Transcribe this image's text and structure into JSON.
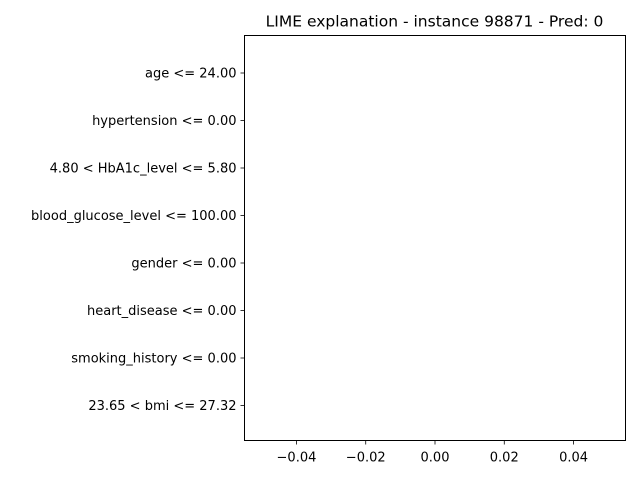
{
  "chart_data": {
    "type": "bar",
    "orientation": "horizontal",
    "title": "LIME explanation - instance 98871 - Pred: 0",
    "xlabel": "",
    "ylabel": "",
    "categories": [
      "age <= 24.00",
      "hypertension <= 0.00",
      "4.80 < HbA1c_level <= 5.80",
      "blood_glucose_level <= 100.00",
      "gender <= 0.00",
      "heart_disease <= 0.00",
      "smoking_history <= 0.00",
      "23.65 < bmi <= 27.32"
    ],
    "values": [
      0,
      0,
      0,
      0,
      0,
      0,
      0,
      0
    ],
    "xlim": [
      -0.055,
      0.055
    ],
    "xticks": [
      -0.04,
      -0.02,
      0.0,
      0.02,
      0.04
    ],
    "xtick_labels": [
      "−0.04",
      "−0.02",
      "0.00",
      "0.02",
      "0.04"
    ],
    "grid": false,
    "legend": "none"
  }
}
